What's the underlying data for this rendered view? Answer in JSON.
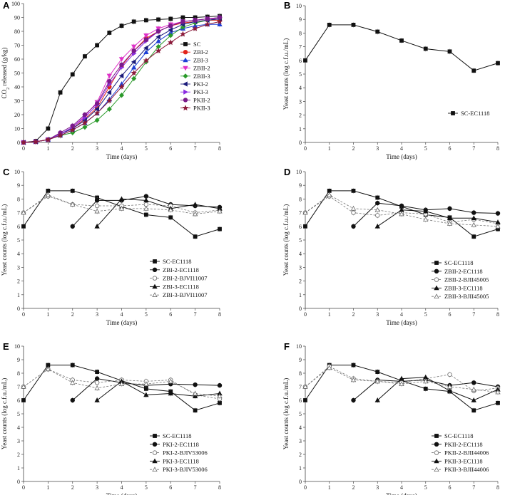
{
  "chart_data": [
    {
      "panel": "A",
      "type": "line",
      "xlabel": "Time (days)",
      "ylabel": "CO2 released (g/kg)",
      "ylabel_parts": [
        "CO",
        "2",
        " released (g/kg)"
      ],
      "xlim": [
        0,
        8
      ],
      "ylim": [
        0,
        100
      ],
      "xticks": [
        0,
        1,
        2,
        3,
        4,
        5,
        6,
        7,
        8
      ],
      "yticks": [
        0,
        10,
        20,
        30,
        40,
        50,
        60,
        70,
        80,
        90,
        100
      ],
      "legend_position": "right",
      "series": [
        {
          "name": "SC",
          "color": "#111111",
          "marker": "square",
          "x": [
            0,
            0.5,
            1,
            1.5,
            2,
            2.5,
            3,
            3.5,
            4,
            4.5,
            5,
            5.5,
            6,
            6.5,
            7,
            7.5,
            8
          ],
          "y": [
            0,
            1,
            10,
            36,
            49,
            62,
            70,
            79,
            84,
            87,
            88,
            88.5,
            89,
            90,
            90,
            90.5,
            91
          ]
        },
        {
          "name": "ZBI-2",
          "color": "#e2231a",
          "marker": "circle",
          "x": [
            0,
            0.5,
            1,
            1.5,
            2,
            2.5,
            3,
            3.5,
            4,
            4.5,
            5,
            5.5,
            6,
            6.5,
            7,
            7.5,
            8
          ],
          "y": [
            0,
            0.5,
            2,
            6,
            10,
            17,
            25,
            40,
            55,
            66,
            75,
            80,
            84,
            86,
            87,
            88,
            88
          ]
        },
        {
          "name": "ZBI-3",
          "color": "#1f3fd6",
          "marker": "triangle",
          "x": [
            0,
            0.5,
            1,
            1.5,
            2,
            2.5,
            3,
            3.5,
            4,
            4.5,
            5,
            5.5,
            6,
            6.5,
            7,
            7.5,
            8
          ],
          "y": [
            0,
            0.5,
            2,
            5,
            9,
            14,
            21,
            31,
            42,
            54,
            65,
            73,
            79,
            82,
            84,
            85,
            85
          ]
        },
        {
          "name": "ZBII-2",
          "color": "#e030c8",
          "marker": "triangle-down",
          "x": [
            0,
            0.5,
            1,
            1.5,
            2,
            2.5,
            3,
            3.5,
            4,
            4.5,
            5,
            5.5,
            6,
            6.5,
            7,
            7.5,
            8
          ],
          "y": [
            0,
            0.5,
            2,
            6,
            11,
            19,
            29,
            48,
            60,
            69,
            77,
            82,
            85,
            87,
            88,
            89,
            89
          ]
        },
        {
          "name": "ZBII-3",
          "color": "#2a9a2a",
          "marker": "diamond",
          "x": [
            0,
            0.5,
            1,
            1.5,
            2,
            2.5,
            3,
            3.5,
            4,
            4.5,
            5,
            5.5,
            6,
            6.5,
            7,
            7.5,
            8
          ],
          "y": [
            0,
            0.5,
            2,
            5,
            7,
            11,
            16,
            24,
            34,
            46,
            58,
            69,
            77,
            83,
            86,
            88,
            89
          ]
        },
        {
          "name": "PKI-2",
          "color": "#1a1a7a",
          "marker": "triangle-left",
          "x": [
            0,
            0.5,
            1,
            1.5,
            2,
            2.5,
            3,
            3.5,
            4,
            4.5,
            5,
            5.5,
            6,
            6.5,
            7,
            7.5,
            8
          ],
          "y": [
            0,
            0.5,
            2,
            6,
            10,
            16,
            24,
            36,
            48,
            58,
            68,
            76,
            81,
            85,
            87,
            88,
            89
          ]
        },
        {
          "name": "PKI-3",
          "color": "#8a2be2",
          "marker": "triangle-right",
          "x": [
            0,
            0.5,
            1,
            1.5,
            2,
            2.5,
            3,
            3.5,
            4,
            4.5,
            5,
            5.5,
            6,
            6.5,
            7,
            7.5,
            8
          ],
          "y": [
            0,
            0.5,
            2,
            6,
            11,
            18,
            27,
            42,
            54,
            64,
            73,
            80,
            84,
            87,
            88,
            89,
            90
          ]
        },
        {
          "name": "PKII-2",
          "color": "#7a1a8a",
          "marker": "circle",
          "x": [
            0,
            0.5,
            1,
            1.5,
            2,
            2.5,
            3,
            3.5,
            4,
            4.5,
            5,
            5.5,
            6,
            6.5,
            7,
            7.5,
            8
          ],
          "y": [
            0,
            0.5,
            2,
            7,
            12,
            20,
            28,
            44,
            56,
            66,
            74,
            80,
            84,
            87,
            88,
            89,
            90
          ]
        },
        {
          "name": "PKII-3",
          "color": "#8b1a3a",
          "marker": "star",
          "x": [
            0,
            0.5,
            1,
            1.5,
            2,
            2.5,
            3,
            3.5,
            4,
            4.5,
            5,
            5.5,
            6,
            6.5,
            7,
            7.5,
            8
          ],
          "y": [
            0,
            0.5,
            2,
            5,
            9,
            14,
            21,
            30,
            40,
            50,
            59,
            66,
            72,
            78,
            82,
            85,
            87
          ]
        }
      ]
    },
    {
      "panel": "B",
      "type": "line",
      "xlabel": "Time (days)",
      "ylabel": "Yeast counts (log c.f.u./mL)",
      "xlim": [
        0,
        8
      ],
      "ylim": [
        0,
        10
      ],
      "xticks": [
        0,
        1,
        2,
        3,
        4,
        5,
        6,
        7,
        8
      ],
      "yticks": [
        0,
        1,
        2,
        3,
        4,
        5,
        6,
        7,
        8,
        9,
        10
      ],
      "legend_position": "middle-right",
      "series": [
        {
          "name": "SC-EC1118",
          "style": "solid",
          "marker": "square-filled",
          "x": [
            0,
            1,
            2,
            3,
            4,
            5,
            6,
            7,
            8
          ],
          "y": [
            6.0,
            8.6,
            8.6,
            8.1,
            7.45,
            6.85,
            6.65,
            5.25,
            5.8
          ]
        }
      ]
    },
    {
      "panel": "C",
      "type": "line",
      "xlabel": "Time (days)",
      "ylabel": "Yeast counts (log c.f.u./mL)",
      "xlim": [
        0,
        8
      ],
      "ylim": [
        0,
        10
      ],
      "xticks": [
        0,
        1,
        2,
        3,
        4,
        5,
        6,
        7,
        8
      ],
      "yticks": [
        0,
        1,
        2,
        3,
        4,
        5,
        6,
        7,
        8,
        9,
        10
      ],
      "legend_position": "bottom-center",
      "series": [
        {
          "name": "SC-EC1118",
          "style": "solid",
          "marker": "square-filled",
          "x": [
            0,
            1,
            2,
            3,
            4,
            5,
            6,
            7,
            8
          ],
          "y": [
            6.0,
            8.6,
            8.6,
            8.1,
            7.45,
            6.85,
            6.65,
            5.25,
            5.8
          ]
        },
        {
          "name": "ZBI-2-EC1118",
          "style": "solid",
          "marker": "circle-filled",
          "x": [
            2,
            3,
            4,
            5,
            6,
            7,
            8
          ],
          "y": [
            6.0,
            7.9,
            7.9,
            8.2,
            7.6,
            7.5,
            7.4
          ]
        },
        {
          "name": "ZBI-2-BJVI11007",
          "style": "dashed",
          "marker": "circle-open",
          "x": [
            0,
            1,
            2,
            3,
            4,
            5,
            6,
            7,
            8
          ],
          "y": [
            7.0,
            8.2,
            7.6,
            7.5,
            7.5,
            7.6,
            7.5,
            7.0,
            7.2
          ]
        },
        {
          "name": "ZBI-3-EC1118",
          "style": "solid",
          "marker": "triangle-filled",
          "x": [
            3,
            4,
            5,
            6,
            7,
            8
          ],
          "y": [
            6.0,
            8.0,
            7.9,
            7.3,
            7.6,
            7.3
          ]
        },
        {
          "name": "ZBI-3-BJVI11007",
          "style": "dashed",
          "marker": "triangle-open",
          "x": [
            0,
            1,
            2,
            3,
            4,
            5,
            6,
            7,
            8
          ],
          "y": [
            7.0,
            8.3,
            7.6,
            7.1,
            7.3,
            7.3,
            7.2,
            6.9,
            7.1
          ]
        }
      ]
    },
    {
      "panel": "D",
      "type": "line",
      "xlabel": "Time (days)",
      "ylabel": "Yeast counts (log c.f.u./mL)",
      "xlim": [
        0,
        8
      ],
      "ylim": [
        0,
        10
      ],
      "xticks": [
        0,
        1,
        2,
        3,
        4,
        5,
        6,
        7,
        8
      ],
      "yticks": [
        0,
        1,
        2,
        3,
        4,
        5,
        6,
        7,
        8,
        9,
        10
      ],
      "legend_position": "bottom-center",
      "series": [
        {
          "name": "SC-EC1118",
          "style": "solid",
          "marker": "square-filled",
          "x": [
            0,
            1,
            2,
            3,
            4,
            5,
            6,
            7,
            8
          ],
          "y": [
            6.0,
            8.6,
            8.6,
            8.1,
            7.45,
            6.85,
            6.65,
            5.25,
            5.8
          ]
        },
        {
          "name": "ZBII-2-EC1118",
          "style": "solid",
          "marker": "circle-filled",
          "x": [
            2,
            3,
            4,
            5,
            6,
            7,
            8
          ],
          "y": [
            6.0,
            7.7,
            7.5,
            7.2,
            7.3,
            7.0,
            6.95
          ]
        },
        {
          "name": "ZBII-2-BJII45005",
          "style": "dashed",
          "marker": "circle-open",
          "x": [
            0,
            1,
            2,
            3,
            4,
            5,
            6,
            7,
            8
          ],
          "y": [
            7.0,
            8.2,
            7.0,
            6.8,
            7.0,
            6.9,
            6.3,
            6.5,
            6.2
          ]
        },
        {
          "name": "ZBII-3-EC1118",
          "style": "solid",
          "marker": "triangle-filled",
          "x": [
            3,
            4,
            5,
            6,
            7,
            8
          ],
          "y": [
            6.0,
            7.2,
            7.1,
            6.6,
            6.6,
            6.3
          ]
        },
        {
          "name": "ZBII-3-BJII45005",
          "style": "dashed",
          "marker": "triangle-open",
          "x": [
            0,
            1,
            2,
            3,
            4,
            5,
            6,
            7,
            8
          ],
          "y": [
            7.0,
            8.3,
            7.3,
            7.2,
            6.9,
            6.5,
            6.2,
            6.1,
            6.0
          ]
        }
      ]
    },
    {
      "panel": "E",
      "type": "line",
      "xlabel": "Time (days)",
      "ylabel": "Yeast counts (log c.f.u./mL)",
      "xlim": [
        0,
        8
      ],
      "ylim": [
        0,
        10
      ],
      "xticks": [
        0,
        1,
        2,
        3,
        4,
        5,
        6,
        7,
        8
      ],
      "yticks": [
        0,
        1,
        2,
        3,
        4,
        5,
        6,
        7,
        8,
        9,
        10
      ],
      "legend_position": "bottom-center",
      "series": [
        {
          "name": "SC-EC1118",
          "style": "solid",
          "marker": "square-filled",
          "x": [
            0,
            1,
            2,
            3,
            4,
            5,
            6,
            7,
            8
          ],
          "y": [
            6.0,
            8.6,
            8.6,
            8.1,
            7.45,
            6.85,
            6.65,
            5.25,
            5.8
          ]
        },
        {
          "name": "PKI-2-EC1118",
          "style": "solid",
          "marker": "circle-filled",
          "x": [
            2,
            3,
            4,
            5,
            6,
            7,
            8
          ],
          "y": [
            6.0,
            7.6,
            7.3,
            7.1,
            7.2,
            7.15,
            7.1
          ]
        },
        {
          "name": "PKI-2-BJIV53006",
          "style": "dashed",
          "marker": "circle-open",
          "x": [
            0,
            1,
            2,
            3,
            4,
            5,
            6,
            7,
            8
          ],
          "y": [
            7.0,
            8.3,
            7.5,
            7.3,
            7.5,
            7.4,
            7.5,
            6.4,
            6.1
          ]
        },
        {
          "name": "PKI-3-EC1118",
          "style": "solid",
          "marker": "triangle-filled",
          "x": [
            3,
            4,
            5,
            6,
            7,
            8
          ],
          "y": [
            6.0,
            7.4,
            6.4,
            6.5,
            6.3,
            6.5
          ]
        },
        {
          "name": "PKI-3-BJIV53006",
          "style": "dashed",
          "marker": "triangle-open",
          "x": [
            0,
            1,
            2,
            3,
            4,
            5,
            6,
            7,
            8
          ],
          "y": [
            7.0,
            8.3,
            7.3,
            6.9,
            7.2,
            7.2,
            7.4,
            6.5,
            6.3
          ]
        }
      ]
    },
    {
      "panel": "F",
      "type": "line",
      "xlabel": "Time (days)",
      "ylabel": "Yeast counts (log c.f.u./mL)",
      "xlim": [
        0,
        8
      ],
      "ylim": [
        0,
        10
      ],
      "xticks": [
        0,
        1,
        2,
        3,
        4,
        5,
        6,
        7,
        8
      ],
      "yticks": [
        0,
        1,
        2,
        3,
        4,
        5,
        6,
        7,
        8,
        9,
        10
      ],
      "legend_position": "bottom-center",
      "series": [
        {
          "name": "SC-EC1118",
          "style": "solid",
          "marker": "square-filled",
          "x": [
            0,
            1,
            2,
            3,
            4,
            5,
            6,
            7,
            8
          ],
          "y": [
            6.0,
            8.6,
            8.6,
            8.1,
            7.45,
            6.85,
            6.65,
            5.25,
            5.8
          ]
        },
        {
          "name": "PKII-2-EC1118",
          "style": "solid",
          "marker": "circle-filled",
          "x": [
            2,
            3,
            4,
            5,
            6,
            7,
            8
          ],
          "y": [
            6.0,
            7.5,
            7.4,
            7.5,
            7.1,
            7.3,
            7.0
          ]
        },
        {
          "name": "PKII-2-BJII44006",
          "style": "dashed",
          "marker": "circle-open",
          "x": [
            0,
            1,
            2,
            3,
            4,
            5,
            6,
            7,
            8
          ],
          "y": [
            7.0,
            8.5,
            7.6,
            7.4,
            7.3,
            7.6,
            7.9,
            6.7,
            6.9
          ]
        },
        {
          "name": "PKII-3-EC1118",
          "style": "solid",
          "marker": "triangle-filled",
          "x": [
            3,
            4,
            5,
            6,
            7,
            8
          ],
          "y": [
            6.0,
            7.6,
            7.7,
            6.7,
            6.0,
            6.8
          ]
        },
        {
          "name": "PKII-3-BJII44006",
          "style": "dashed",
          "marker": "triangle-open",
          "x": [
            0,
            1,
            2,
            3,
            4,
            5,
            6,
            7,
            8
          ],
          "y": [
            7.0,
            8.4,
            7.5,
            7.4,
            7.2,
            7.4,
            7.0,
            6.8,
            6.6
          ]
        }
      ]
    }
  ]
}
